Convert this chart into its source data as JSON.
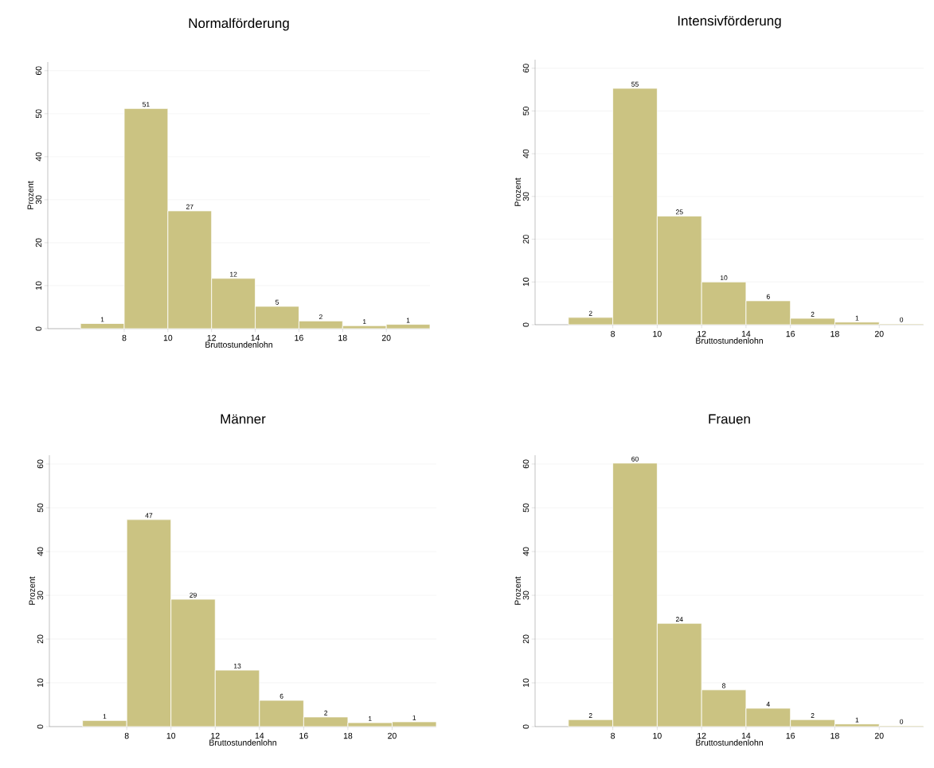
{
  "chart_data": [
    {
      "type": "histogram",
      "title": "Normalförderung",
      "xlabel": "Bruttostundenlohn",
      "ylabel": "Prozent",
      "bins": [
        6,
        8,
        10,
        12,
        14,
        16,
        18,
        20,
        22
      ],
      "values": [
        1.2,
        51.2,
        27.4,
        11.7,
        5.2,
        1.8,
        0.7,
        1.0
      ],
      "value_labels": [
        "1",
        "51",
        "27",
        "12",
        "5",
        "2",
        "1",
        "1"
      ],
      "color": "#cbc382",
      "xlim": [
        4.5,
        22
      ],
      "ylim": [
        0,
        62
      ],
      "xticks": [
        8,
        10,
        12,
        14,
        16,
        18,
        20
      ],
      "yticks": [
        0,
        10,
        20,
        30,
        40,
        50,
        60
      ],
      "grid": "y"
    },
    {
      "type": "histogram",
      "title": "Intensivförderung",
      "xlabel": "Bruttostundenlohn",
      "ylabel": "Prozent",
      "bins": [
        6,
        8,
        10,
        12,
        14,
        16,
        18,
        20,
        22
      ],
      "values": [
        1.7,
        55.3,
        25.4,
        10.0,
        5.6,
        1.5,
        0.6,
        0.2
      ],
      "value_labels": [
        "2",
        "55",
        "25",
        "10",
        "6",
        "2",
        "1",
        "0"
      ],
      "color": "#cbc382",
      "xlim": [
        4.5,
        22
      ],
      "ylim": [
        0,
        62
      ],
      "xticks": [
        8,
        10,
        12,
        14,
        16,
        18,
        20
      ],
      "yticks": [
        0,
        10,
        20,
        30,
        40,
        50,
        60
      ],
      "grid": "y"
    },
    {
      "type": "histogram",
      "title": "Männer",
      "xlabel": "Bruttostundenlohn",
      "ylabel": "Prozent",
      "bins": [
        6,
        8,
        10,
        12,
        14,
        16,
        18,
        20,
        22
      ],
      "values": [
        1.4,
        47.3,
        29.1,
        12.9,
        6.0,
        2.2,
        0.9,
        1.1
      ],
      "value_labels": [
        "1",
        "47",
        "29",
        "13",
        "6",
        "2",
        "1",
        "1"
      ],
      "color": "#cbc382",
      "xlim": [
        4.5,
        22
      ],
      "ylim": [
        0,
        62
      ],
      "xticks": [
        8,
        10,
        12,
        14,
        16,
        18,
        20
      ],
      "yticks": [
        0,
        10,
        20,
        30,
        40,
        50,
        60
      ],
      "grid": "y"
    },
    {
      "type": "histogram",
      "title": "Frauen",
      "xlabel": "Bruttostundenlohn",
      "ylabel": "Prozent",
      "bins": [
        6,
        8,
        10,
        12,
        14,
        16,
        18,
        20,
        22
      ],
      "values": [
        1.6,
        60.2,
        23.6,
        8.4,
        4.2,
        1.6,
        0.6,
        0.2
      ],
      "value_labels": [
        "2",
        "60",
        "24",
        "8",
        "4",
        "2",
        "1",
        "0"
      ],
      "color": "#cbc382",
      "xlim": [
        4.5,
        22
      ],
      "ylim": [
        0,
        62
      ],
      "xticks": [
        8,
        10,
        12,
        14,
        16,
        18,
        20
      ],
      "yticks": [
        0,
        10,
        20,
        30,
        40,
        50,
        60
      ],
      "grid": "y"
    }
  ]
}
